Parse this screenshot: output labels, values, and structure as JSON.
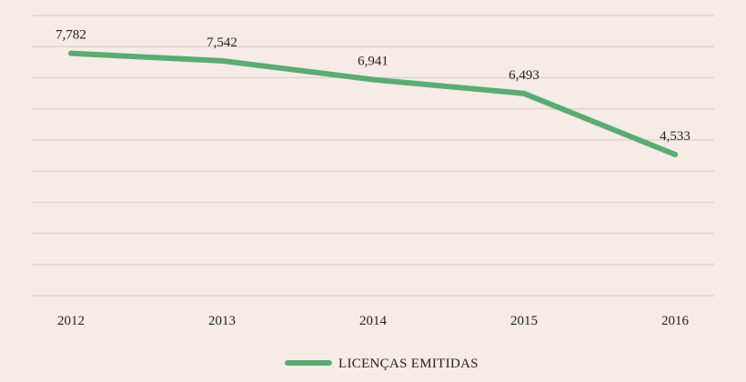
{
  "chart_data": {
    "type": "line",
    "title": "",
    "xlabel": "",
    "ylabel": "",
    "categories": [
      "2012",
      "2013",
      "2014",
      "2015",
      "2016"
    ],
    "series": [
      {
        "name": "LICENÇAS EMITIDAS",
        "values": [
          7782,
          7542,
          6941,
          6493,
          4533
        ],
        "labels": [
          "7,782",
          "7,542",
          "6,941",
          "6,493",
          "4,533"
        ],
        "color": "#5aac72"
      }
    ],
    "ylim": [
      0,
      9000
    ],
    "grid": true,
    "y_tick_labels_shown": false,
    "legend_position": "bottom-center"
  }
}
